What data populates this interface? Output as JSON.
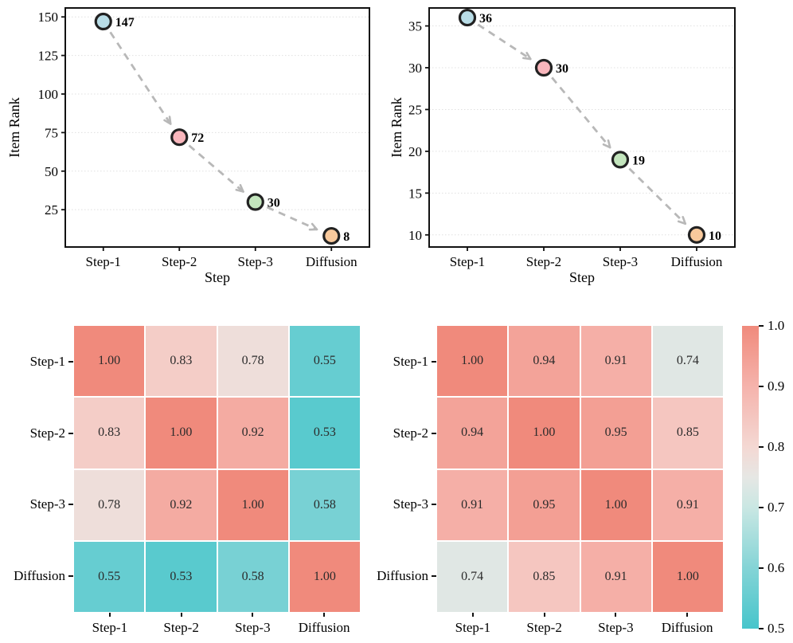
{
  "chart_data": [
    {
      "id": "item-rank-left",
      "type": "line",
      "title": "",
      "xlabel": "Step",
      "ylabel": "Item Rank",
      "categories": [
        "Step-1",
        "Step-2",
        "Step-3",
        "Diffusion"
      ],
      "values": [
        147,
        72,
        30,
        8
      ],
      "point_labels": [
        "147",
        "72",
        "30",
        "8"
      ],
      "yticks": [
        25,
        50,
        75,
        100,
        125,
        150
      ],
      "ylim": [
        0.8,
        155.8
      ],
      "grid": "dotted-horizontal",
      "legend": "none"
    },
    {
      "id": "item-rank-right",
      "type": "line",
      "title": "",
      "xlabel": "Step",
      "ylabel": "Item Rank",
      "categories": [
        "Step-1",
        "Step-2",
        "Step-3",
        "Diffusion"
      ],
      "values": [
        36,
        30,
        19,
        10
      ],
      "point_labels": [
        "36",
        "30",
        "19",
        "10"
      ],
      "yticks": [
        10,
        15,
        20,
        25,
        30,
        35
      ],
      "ylim": [
        8.55,
        37.15
      ],
      "grid": "dotted-horizontal",
      "legend": "none"
    },
    {
      "id": "similarity-heatmap-left",
      "type": "heatmap",
      "rows": [
        "Step-1",
        "Step-2",
        "Step-3",
        "Diffusion"
      ],
      "cols": [
        "Step-1",
        "Step-2",
        "Step-3",
        "Diffusion"
      ],
      "matrix": [
        [
          1.0,
          0.83,
          0.78,
          0.55
        ],
        [
          0.83,
          1.0,
          0.92,
          0.53
        ],
        [
          0.78,
          0.92,
          1.0,
          0.58
        ],
        [
          0.55,
          0.53,
          0.58,
          1.0
        ]
      ]
    },
    {
      "id": "similarity-heatmap-right",
      "type": "heatmap",
      "rows": [
        "Step-1",
        "Step-2",
        "Step-3",
        "Diffusion"
      ],
      "cols": [
        "Step-1",
        "Step-2",
        "Step-3",
        "Diffusion"
      ],
      "matrix": [
        [
          1.0,
          0.94,
          0.91,
          0.74
        ],
        [
          0.94,
          1.0,
          0.95,
          0.85
        ],
        [
          0.91,
          0.95,
          1.0,
          0.91
        ],
        [
          0.74,
          0.85,
          0.91,
          1.0
        ]
      ]
    }
  ],
  "colorbar": {
    "min": 0.5,
    "max": 1.0,
    "tick_labels": [
      "1.0",
      "0.9",
      "0.8",
      "0.7",
      "0.6",
      "0.5"
    ],
    "gradient_stops": [
      [
        1.0,
        "#f08a7c"
      ],
      [
        0.9,
        "#f5b3ac"
      ],
      [
        0.8,
        "#f4d8d3"
      ],
      [
        0.75,
        "#e6e7e4"
      ],
      [
        0.7,
        "#c9e7e3"
      ],
      [
        0.6,
        "#84d4d6"
      ],
      [
        0.5,
        "#47c5cb"
      ]
    ]
  },
  "style": {
    "marker_fills": [
      "#b9dde7",
      "#f9b6bc",
      "#c3e5bd",
      "#f8c99c"
    ],
    "marker_edge": "#222222",
    "arrow_color": "#b8b8b8",
    "spine_color": "#111111",
    "grid_color": "#e0e0e0",
    "background": "#ffffff",
    "cell_text_color": "#2b2b2b"
  }
}
